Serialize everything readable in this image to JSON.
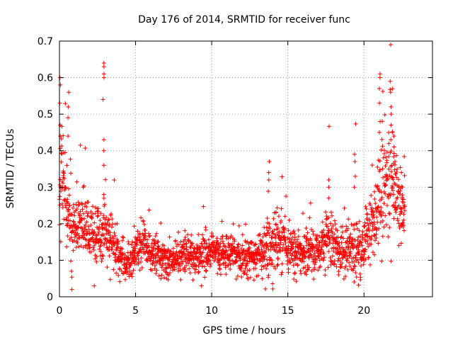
{
  "chart_data": {
    "type": "scatter",
    "title": "Day 176 of 2014, SRMTID for receiver func",
    "xlabel": "GPS time / hours",
    "ylabel": "SRMTID / TECUs",
    "xlim": [
      0,
      24.5
    ],
    "ylim": [
      0,
      0.7
    ],
    "xticks": [
      "0",
      "5",
      "10",
      "15",
      "20"
    ],
    "yticks": [
      "0",
      "0.1",
      "0.2",
      "0.3",
      "0.4",
      "0.5",
      "0.6",
      "0.7"
    ],
    "xtick_values": [
      0,
      5,
      10,
      15,
      20
    ],
    "ytick_values": [
      0,
      0.1,
      0.2,
      0.3,
      0.4,
      0.5,
      0.6,
      0.7
    ],
    "grid": true,
    "marker": "plus",
    "color": "#ff0000",
    "envelope": {
      "x": [
        0,
        0.1,
        0.3,
        0.6,
        1.0,
        1.5,
        2.0,
        2.5,
        3.0,
        3.5,
        4.0,
        4.5,
        5.0,
        5.5,
        6.0,
        7.0,
        8.0,
        9.0,
        10.0,
        11.0,
        12.0,
        13.0,
        13.7,
        14.5,
        15.0,
        16.0,
        17.0,
        17.7,
        18.5,
        19.3,
        19.8,
        20.2,
        20.7,
        21.0,
        21.4,
        21.8,
        22.2,
        22.6
      ],
      "mean": [
        0.33,
        0.38,
        0.3,
        0.22,
        0.18,
        0.2,
        0.18,
        0.16,
        0.17,
        0.14,
        0.1,
        0.09,
        0.13,
        0.15,
        0.12,
        0.1,
        0.11,
        0.11,
        0.12,
        0.12,
        0.11,
        0.11,
        0.14,
        0.16,
        0.12,
        0.12,
        0.13,
        0.17,
        0.12,
        0.14,
        0.12,
        0.18,
        0.2,
        0.25,
        0.3,
        0.33,
        0.28,
        0.22
      ],
      "spread": [
        0.12,
        0.14,
        0.1,
        0.08,
        0.07,
        0.07,
        0.07,
        0.06,
        0.07,
        0.05,
        0.04,
        0.04,
        0.05,
        0.05,
        0.05,
        0.04,
        0.04,
        0.045,
        0.045,
        0.045,
        0.04,
        0.04,
        0.07,
        0.07,
        0.05,
        0.05,
        0.05,
        0.07,
        0.05,
        0.07,
        0.05,
        0.06,
        0.08,
        0.11,
        0.12,
        0.13,
        0.1,
        0.06
      ]
    },
    "highlights": [
      {
        "x": 0.05,
        "y": [
          0.6,
          0.58,
          0.53,
          0.47,
          0.44
        ]
      },
      {
        "x": 0.6,
        "y": [
          0.56,
          0.52,
          0.49,
          0.44
        ]
      },
      {
        "x": 2.9,
        "y": [
          0.64,
          0.63,
          0.61,
          0.6,
          0.54,
          0.43,
          0.4,
          0.36,
          0.28
        ]
      },
      {
        "x": 13.75,
        "y": [
          0.37,
          0.34,
          0.32
        ]
      },
      {
        "x": 17.7,
        "y": [
          0.32,
          0.3,
          0.27
        ]
      },
      {
        "x": 19.4,
        "y": [
          0.39,
          0.37,
          0.33,
          0.3
        ]
      },
      {
        "x": 21.05,
        "y": [
          0.61,
          0.6,
          0.57,
          0.53,
          0.48,
          0.45
        ]
      },
      {
        "x": 21.75,
        "y": [
          0.59,
          0.56,
          0.52,
          0.5,
          0.47,
          0.43
        ]
      },
      {
        "x": 22.0,
        "y": [
          0.44,
          0.41,
          0.37
        ]
      },
      {
        "x": 22.5,
        "y": [
          0.34,
          0.3,
          0.26
        ]
      },
      {
        "x": 0.8,
        "y": [
          0.02
        ]
      },
      {
        "x": 9.3,
        "y": [
          0.03
        ]
      }
    ],
    "sample_count": 2200,
    "x_range_of_samples": [
      0,
      22.7
    ]
  }
}
